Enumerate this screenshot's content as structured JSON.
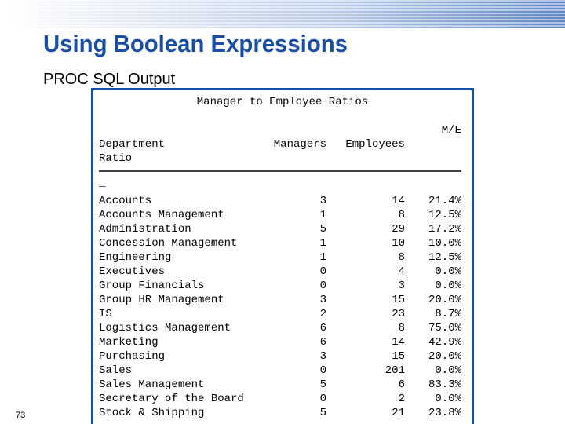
{
  "slide": {
    "title": "Using Boolean Expressions",
    "subtitle": "PROC SQL Output",
    "page_number": "73"
  },
  "output": {
    "title": "Manager to Employee Ratios",
    "header": {
      "ratio_top": "M/E",
      "department": "Department",
      "managers": "Managers",
      "employees": "Employees",
      "ratio": "Ratio",
      "continuation": "_"
    },
    "rows": [
      [
        "Accounts",
        "3",
        "14",
        "21.4%"
      ],
      [
        "Accounts Management",
        "1",
        "8",
        "12.5%"
      ],
      [
        "Administration",
        "5",
        "29",
        "17.2%"
      ],
      [
        "Concession Management",
        "1",
        "10",
        "10.0%"
      ],
      [
        "Engineering",
        "1",
        "8",
        "12.5%"
      ],
      [
        "Executives",
        "0",
        "4",
        "0.0%"
      ],
      [
        "Group Financials",
        "0",
        "3",
        "0.0%"
      ],
      [
        "Group HR Management",
        "3",
        "15",
        "20.0%"
      ],
      [
        "IS",
        "2",
        "23",
        "8.7%"
      ],
      [
        "Logistics Management",
        "6",
        "8",
        "75.0%"
      ],
      [
        "Marketing",
        "6",
        "14",
        "42.9%"
      ],
      [
        "Purchasing",
        "3",
        "15",
        "20.0%"
      ],
      [
        "Sales",
        "0",
        "201",
        "0.0%"
      ],
      [
        "Sales Management",
        "5",
        "6",
        "83.3%"
      ],
      [
        "Secretary of the Board",
        "0",
        "2",
        "0.0%"
      ],
      [
        "Stock & Shipping",
        "5",
        "21",
        "23.8%"
      ]
    ]
  }
}
